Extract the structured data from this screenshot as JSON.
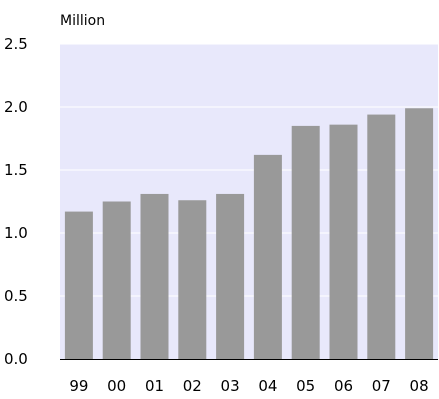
{
  "chart_data": {
    "type": "bar",
    "unit_label": "Million",
    "categories": [
      "99",
      "00",
      "01",
      "02",
      "03",
      "04",
      "05",
      "06",
      "07",
      "08"
    ],
    "values": [
      1.17,
      1.25,
      1.31,
      1.26,
      1.31,
      1.62,
      1.85,
      1.86,
      1.94,
      1.99
    ],
    "y_ticks": [
      "0.0",
      "0.5",
      "1.0",
      "1.5",
      "2.0",
      "2.5"
    ],
    "ylim": [
      0,
      2.5
    ],
    "grid": true,
    "colors": {
      "plot_background": "#e8e8fb",
      "bar": "#999999",
      "gridline": "#ffffff",
      "axis": "#000000"
    }
  }
}
